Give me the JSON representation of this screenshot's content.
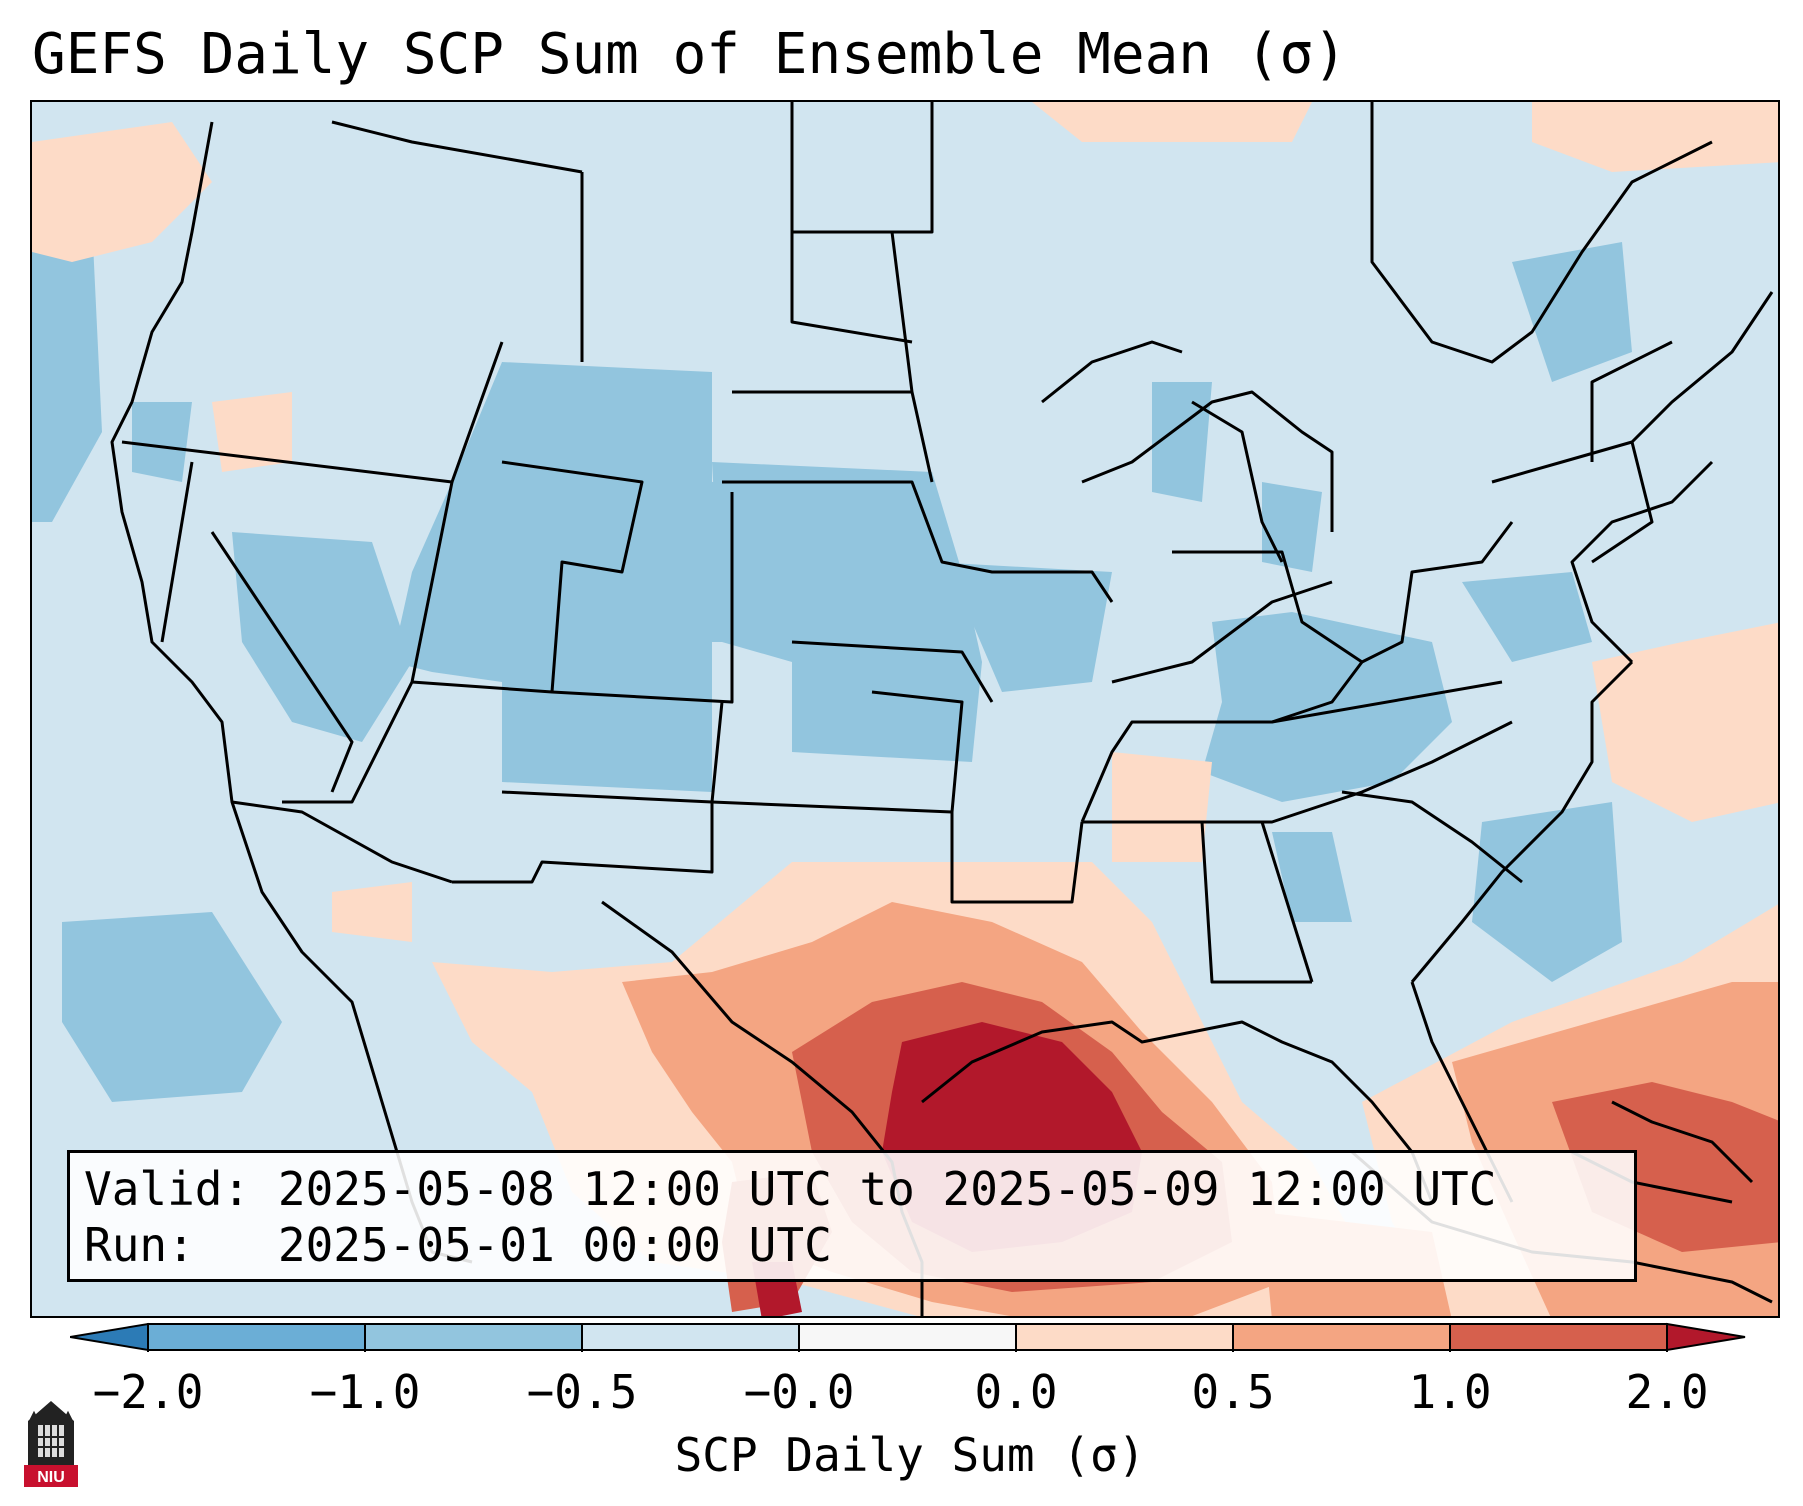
{
  "title": "GEFS Daily SCP Sum of Ensemble Mean (σ)",
  "info": {
    "valid_label": "Valid:",
    "valid_value": "2025-05-08 12:00 UTC to 2025-05-09 12:00 UTC",
    "run_label": "Run:",
    "run_value": "2025-05-01 00:00 UTC"
  },
  "colorbar": {
    "label": "SCP Daily Sum (σ)",
    "ticks": [
      "−2.0",
      "−1.0",
      "−0.5",
      "−0.0",
      "0.0",
      "0.5",
      "1.0",
      "2.0"
    ],
    "colors": [
      "#2c7bb6",
      "#6baed6",
      "#92c5de",
      "#d1e5f0",
      "#f7f7f7",
      "#fddbc7",
      "#f4a582",
      "#d6604d",
      "#b2182b"
    ],
    "extend": "both"
  },
  "map": {
    "region": "CONUS",
    "background_color": "#d1e5f0",
    "highlight_area": "Gulf Coast / Texas"
  },
  "logo": {
    "text": "NIU",
    "color": "#c8102e"
  }
}
